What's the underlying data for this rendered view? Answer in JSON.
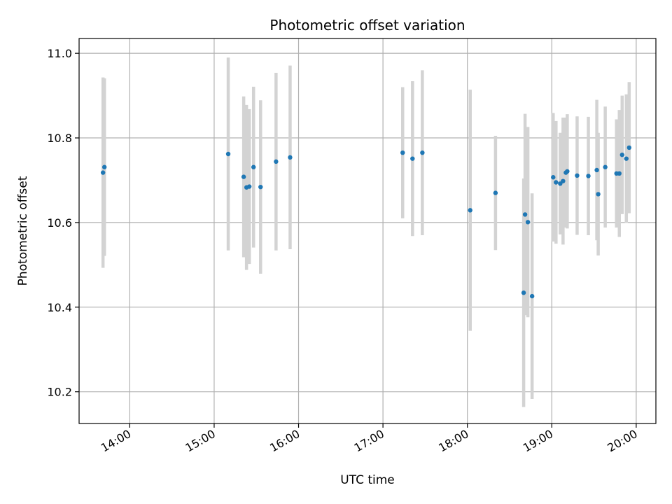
{
  "chart_data": {
    "type": "scatter",
    "title": "Photometric offset variation",
    "xlabel": "UTC time",
    "ylabel": "Photometric offset",
    "x_ticks": [
      "14:00",
      "15:00",
      "16:00",
      "17:00",
      "18:00",
      "19:00",
      "20:00"
    ],
    "y_ticks": [
      "10.2",
      "10.4",
      "10.6",
      "10.8",
      "11.0"
    ],
    "xlim": [
      "13:24",
      "20:14"
    ],
    "ylim": [
      10.125,
      11.035
    ],
    "grid": true,
    "colors": {
      "point": "#1f77b4",
      "errorbar": "#d3d3d3",
      "grid": "#b0b0b0"
    },
    "points": [
      {
        "x": "13:41",
        "y": 10.718,
        "err": 0.225
      },
      {
        "x": "13:42",
        "y": 10.731,
        "err": 0.21
      },
      {
        "x": "15:10",
        "y": 10.762,
        "err": 0.228
      },
      {
        "x": "15:21",
        "y": 10.708,
        "err": 0.19
      },
      {
        "x": "15:23",
        "y": 10.683,
        "err": 0.195
      },
      {
        "x": "15:25",
        "y": 10.685,
        "err": 0.183
      },
      {
        "x": "15:28",
        "y": 10.731,
        "err": 0.19
      },
      {
        "x": "15:33",
        "y": 10.684,
        "err": 0.205
      },
      {
        "x": "15:44",
        "y": 10.744,
        "err": 0.21
      },
      {
        "x": "15:54",
        "y": 10.754,
        "err": 0.217
      },
      {
        "x": "17:14",
        "y": 10.765,
        "err": 0.155
      },
      {
        "x": "17:21",
        "y": 10.751,
        "err": 0.183
      },
      {
        "x": "17:28",
        "y": 10.765,
        "err": 0.195
      },
      {
        "x": "18:02",
        "y": 10.629,
        "err": 0.285
      },
      {
        "x": "18:20",
        "y": 10.67,
        "err": 0.135
      },
      {
        "x": "18:40",
        "y": 10.434,
        "err": 0.27
      },
      {
        "x": "18:41",
        "y": 10.619,
        "err": 0.238
      },
      {
        "x": "18:43",
        "y": 10.601,
        "err": 0.225
      },
      {
        "x": "18:46",
        "y": 10.426,
        "err": 0.243
      },
      {
        "x": "19:01",
        "y": 10.707,
        "err": 0.152
      },
      {
        "x": "19:03",
        "y": 10.695,
        "err": 0.145
      },
      {
        "x": "19:06",
        "y": 10.692,
        "err": 0.12
      },
      {
        "x": "19:08",
        "y": 10.698,
        "err": 0.15
      },
      {
        "x": "19:10",
        "y": 10.718,
        "err": 0.13
      },
      {
        "x": "19:11",
        "y": 10.721,
        "err": 0.135
      },
      {
        "x": "19:18",
        "y": 10.711,
        "err": 0.14
      },
      {
        "x": "19:26",
        "y": 10.71,
        "err": 0.14
      },
      {
        "x": "19:32",
        "y": 10.724,
        "err": 0.166
      },
      {
        "x": "19:33",
        "y": 10.667,
        "err": 0.145
      },
      {
        "x": "19:38",
        "y": 10.731,
        "err": 0.143
      },
      {
        "x": "19:46",
        "y": 10.716,
        "err": 0.128
      },
      {
        "x": "19:48",
        "y": 10.716,
        "err": 0.15
      },
      {
        "x": "19:50",
        "y": 10.76,
        "err": 0.14
      },
      {
        "x": "19:53",
        "y": 10.751,
        "err": 0.152
      },
      {
        "x": "19:55",
        "y": 10.777,
        "err": 0.155
      }
    ]
  }
}
